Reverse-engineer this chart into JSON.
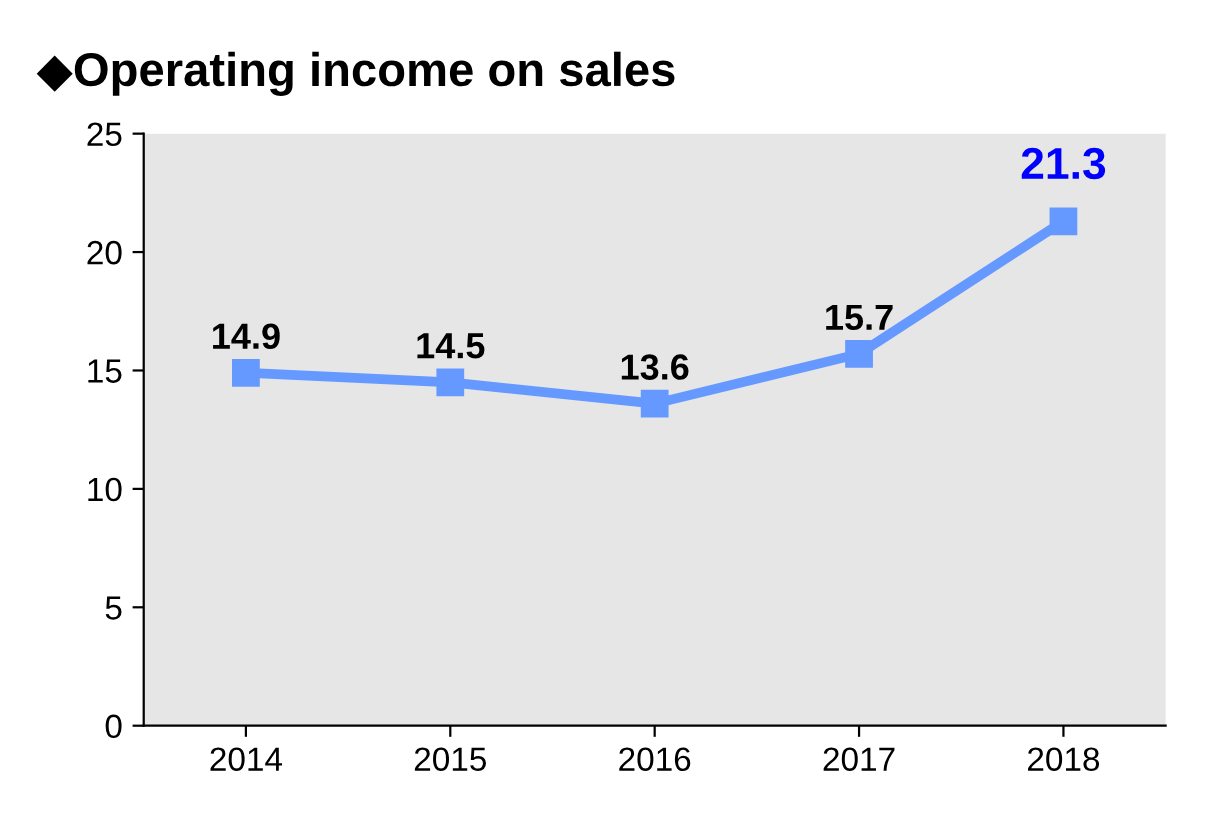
{
  "chart_data": {
    "type": "line",
    "title": "◆Operating income on sales",
    "categories": [
      "2014",
      "2015",
      "2016",
      "2017",
      "2018"
    ],
    "series": [
      {
        "color": "#6699ff",
        "values": [
          14.9,
          14.5,
          13.6,
          15.7,
          21.3
        ]
      }
    ],
    "ylim": [
      0,
      25
    ],
    "yticks": [
      0,
      5,
      10,
      15,
      20,
      25
    ],
    "grid": false,
    "marker": "square",
    "line_style": "solid",
    "data_labels": true
  }
}
